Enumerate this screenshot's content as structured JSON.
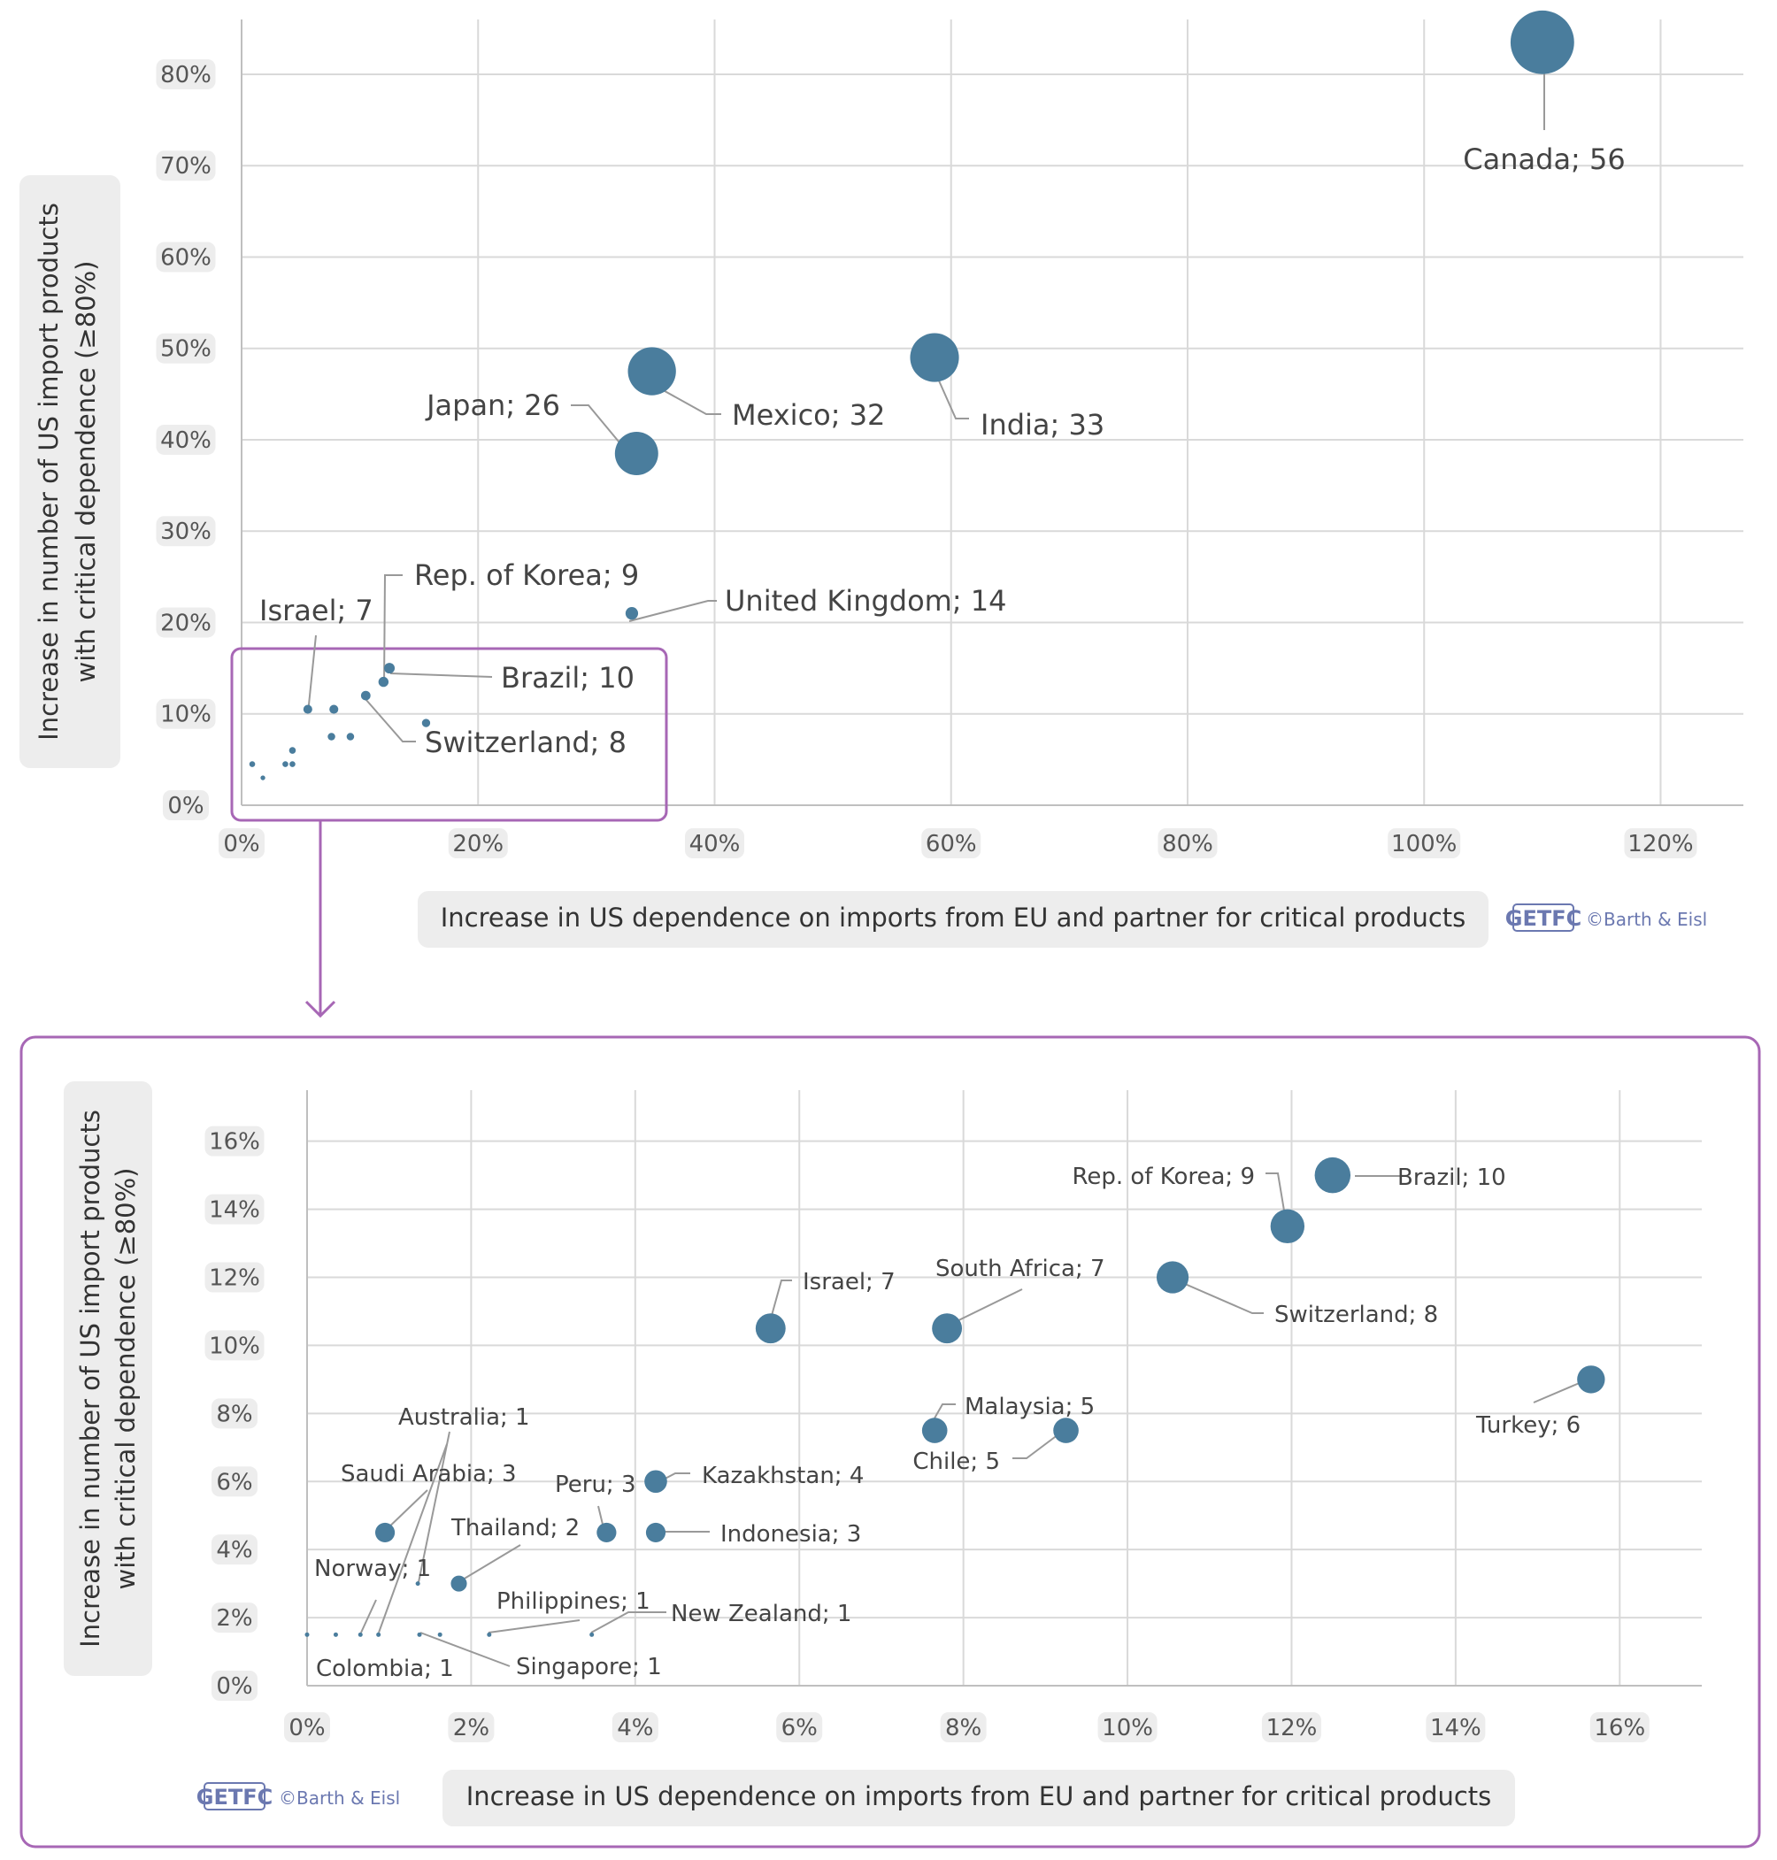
{
  "chart_data": [
    {
      "type": "scatter",
      "subtype": "bubble",
      "title": "",
      "xlabel": "Increase in US dependence on imports from EU and partner for critical products",
      "ylabel": "Increase in number of US import products with critical dependence (≥80%)",
      "xlim": [
        0,
        1.27
      ],
      "ylim": [
        0,
        0.86
      ],
      "xticks": [
        0,
        0.2,
        0.4,
        0.6,
        0.8,
        1.0,
        1.2
      ],
      "xtick_labels": [
        "0%",
        "20%",
        "40%",
        "60%",
        "80%",
        "100%",
        "120%"
      ],
      "yticks": [
        0,
        0.1,
        0.2,
        0.3,
        0.4,
        0.5,
        0.6,
        0.7,
        0.8
      ],
      "ytick_labels": [
        "0%",
        "10%",
        "20%",
        "30%",
        "40%",
        "50%",
        "60%",
        "70%",
        "80%"
      ],
      "grid": true,
      "highlight_box": {
        "x": [
          0,
          0.36
        ],
        "y": [
          0,
          0.17
        ],
        "note": "zoomed in lower panel"
      },
      "points": [
        {
          "name": "Canada",
          "x": 1.1,
          "y": 0.835,
          "size": 56,
          "label": "Canada; 56"
        },
        {
          "name": "India",
          "x": 0.586,
          "y": 0.49,
          "size": 33,
          "label": "India; 33"
        },
        {
          "name": "Mexico",
          "x": 0.347,
          "y": 0.475,
          "size": 32,
          "label": "Mexico; 32"
        },
        {
          "name": "Japan",
          "x": 0.334,
          "y": 0.385,
          "size": 26,
          "label": "Japan; 26"
        },
        {
          "name": "United Kingdom",
          "x": 0.33,
          "y": 0.21,
          "size": 14,
          "label": "United Kingdom; 14"
        },
        {
          "name": "Brazil",
          "x": 0.125,
          "y": 0.15,
          "size": 10,
          "label": "Brazil; 10"
        },
        {
          "name": "Rep. of Korea",
          "x": 0.12,
          "y": 0.135,
          "size": 9,
          "label": "Rep. of Korea; 9"
        },
        {
          "name": "Switzerland",
          "x": 0.105,
          "y": 0.12,
          "size": 8,
          "label": "Switzerland; 8"
        },
        {
          "name": "Israel",
          "x": 0.056,
          "y": 0.105,
          "size": 7,
          "label": "Israel; 7"
        },
        {
          "name": "South Africa",
          "x": 0.078,
          "y": 0.105,
          "size": 7,
          "label": ""
        },
        {
          "name": "Turkey",
          "x": 0.156,
          "y": 0.09,
          "size": 6,
          "label": ""
        },
        {
          "name": "Malaysia",
          "x": 0.076,
          "y": 0.075,
          "size": 5,
          "label": ""
        },
        {
          "name": "Chile",
          "x": 0.092,
          "y": 0.075,
          "size": 5,
          "label": ""
        },
        {
          "name": "Kazakhstan",
          "x": 0.043,
          "y": 0.06,
          "size": 4,
          "label": ""
        },
        {
          "name": "Saudi Arabia",
          "x": 0.009,
          "y": 0.045,
          "size": 3,
          "label": ""
        },
        {
          "name": "Peru",
          "x": 0.037,
          "y": 0.045,
          "size": 3,
          "label": ""
        },
        {
          "name": "Indonesia",
          "x": 0.043,
          "y": 0.045,
          "size": 3,
          "label": ""
        },
        {
          "name": "Thailand",
          "x": 0.018,
          "y": 0.03,
          "size": 2,
          "label": ""
        }
      ]
    },
    {
      "type": "scatter",
      "subtype": "bubble",
      "title": "",
      "xlabel": "Increase in US dependence on imports from EU and partner for critical products",
      "ylabel": "Increase in number of US import products with critical dependence (≥80%)",
      "xlim": [
        0,
        0.17
      ],
      "ylim": [
        0,
        0.175
      ],
      "xticks": [
        0,
        0.02,
        0.04,
        0.06,
        0.08,
        0.1,
        0.12,
        0.14,
        0.16
      ],
      "xtick_labels": [
        "0%",
        "2%",
        "4%",
        "6%",
        "8%",
        "10%",
        "12%",
        "14%",
        "16%"
      ],
      "yticks": [
        0,
        0.02,
        0.04,
        0.06,
        0.08,
        0.1,
        0.12,
        0.14,
        0.16
      ],
      "ytick_labels": [
        "0%",
        "2%",
        "4%",
        "6%",
        "8%",
        "10%",
        "12%",
        "14%",
        "16%"
      ],
      "grid": true,
      "points": [
        {
          "name": "Brazil",
          "x": 0.125,
          "y": 0.15,
          "size": 10,
          "label": "Brazil; 10"
        },
        {
          "name": "Rep. of Korea",
          "x": 0.1195,
          "y": 0.135,
          "size": 9,
          "label": "Rep. of Korea; 9"
        },
        {
          "name": "Switzerland",
          "x": 0.1055,
          "y": 0.12,
          "size": 8,
          "label": "Switzerland; 8"
        },
        {
          "name": "Israel",
          "x": 0.0565,
          "y": 0.105,
          "size": 7,
          "label": "Israel; 7"
        },
        {
          "name": "South Africa",
          "x": 0.078,
          "y": 0.105,
          "size": 7,
          "label": "South Africa; 7"
        },
        {
          "name": "Turkey",
          "x": 0.1565,
          "y": 0.09,
          "size": 6,
          "label": "Turkey; 6"
        },
        {
          "name": "Malaysia",
          "x": 0.0765,
          "y": 0.075,
          "size": 5,
          "label": "Malaysia; 5"
        },
        {
          "name": "Chile",
          "x": 0.0925,
          "y": 0.075,
          "size": 5,
          "label": "Chile; 5"
        },
        {
          "name": "Kazakhstan",
          "x": 0.0425,
          "y": 0.06,
          "size": 4,
          "label": "Kazakhstan; 4"
        },
        {
          "name": "Saudi Arabia",
          "x": 0.0095,
          "y": 0.045,
          "size": 3,
          "label": "Saudi Arabia; 3"
        },
        {
          "name": "Peru",
          "x": 0.0365,
          "y": 0.045,
          "size": 3,
          "label": "Peru; 3"
        },
        {
          "name": "Indonesia",
          "x": 0.0425,
          "y": 0.045,
          "size": 3,
          "label": "Indonesia; 3"
        },
        {
          "name": "Thailand",
          "x": 0.0185,
          "y": 0.03,
          "size": 2,
          "label": "Thailand; 2"
        },
        {
          "name": "Australia",
          "x": 0.0135,
          "y": 0.03,
          "size": 1,
          "label": "Australia; 1"
        },
        {
          "name": "Norway",
          "x": 0.0065,
          "y": 0.015,
          "size": 1,
          "label": "Norway; 1"
        },
        {
          "name": "Colombia",
          "x": 0.0087,
          "y": 0.015,
          "size": 1,
          "label": "Colombia; 1"
        },
        {
          "name": "Singapore",
          "x": 0.0137,
          "y": 0.015,
          "size": 1,
          "label": "Singapore; 1"
        },
        {
          "name": "Philippines",
          "x": 0.0222,
          "y": 0.015,
          "size": 1,
          "label": "Philippines; 1"
        },
        {
          "name": "New Zealand",
          "x": 0.0347,
          "y": 0.015,
          "size": 1,
          "label": "New Zealand; 1"
        },
        {
          "name": "",
          "x": 0.0,
          "y": 0.015,
          "size": 1,
          "label": ""
        },
        {
          "name": "",
          "x": 0.0035,
          "y": 0.015,
          "size": 1,
          "label": ""
        },
        {
          "name": "",
          "x": 0.0162,
          "y": 0.015,
          "size": 1,
          "label": ""
        }
      ]
    }
  ],
  "credit": "©Barth & Eisl",
  "logo_text": "GETFC",
  "colors": {
    "bubble": "#4a7d9d",
    "highlight": "#a767b5",
    "grid": "#d9d9d9",
    "leader": "#999999",
    "pill": "#ededed"
  }
}
